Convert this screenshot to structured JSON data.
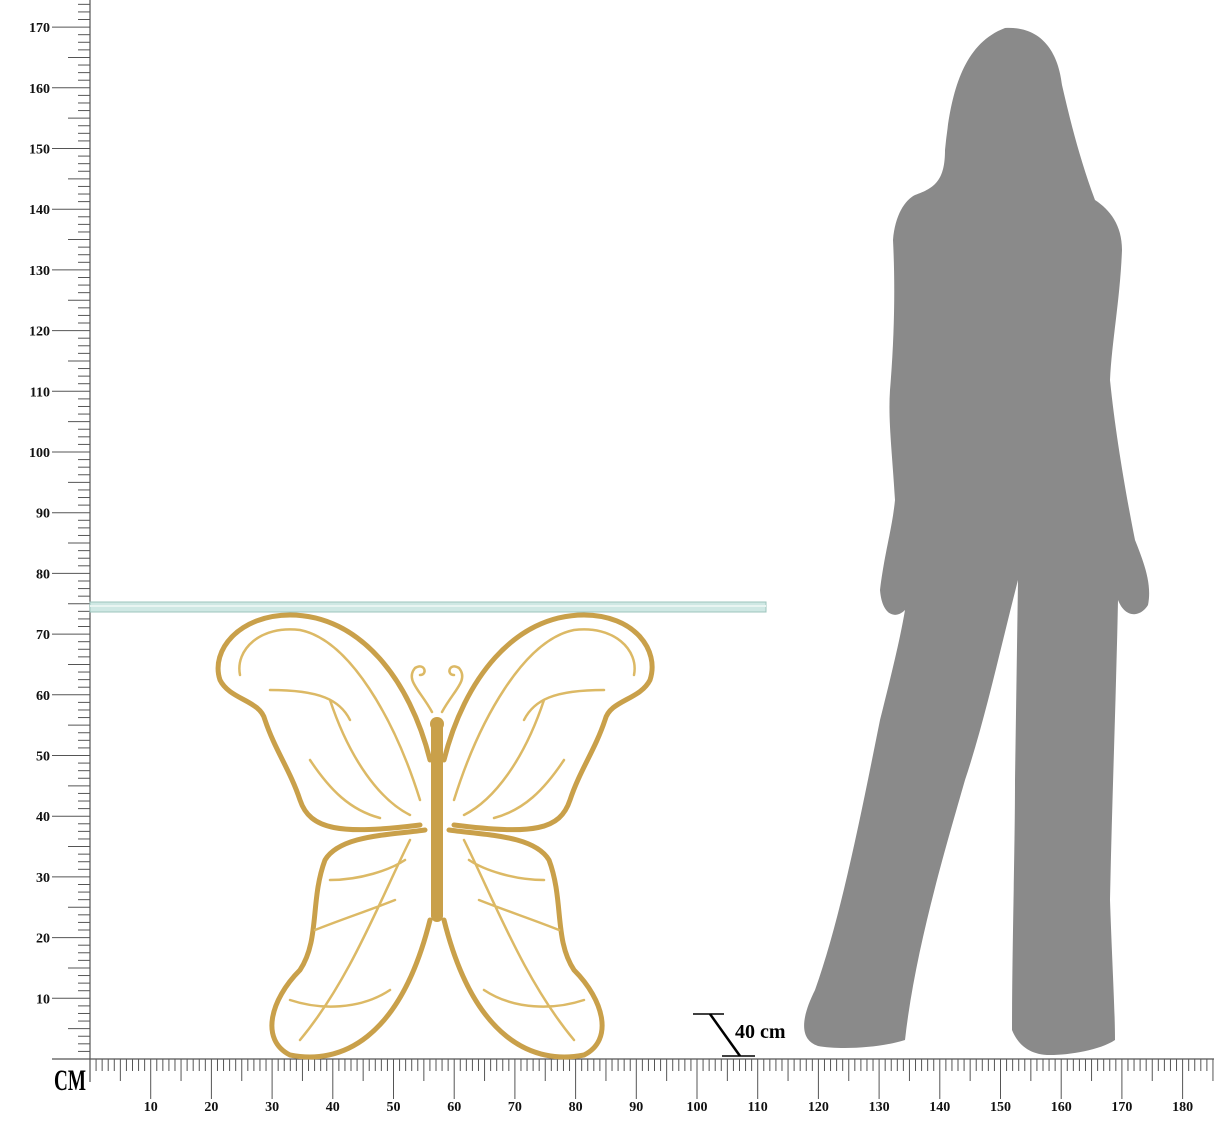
{
  "unit_label": "CM",
  "dimension_label": "40 cm",
  "x_axis": {
    "min": 0,
    "max": 185,
    "tick_labels": [
      "10",
      "20",
      "30",
      "40",
      "50",
      "60",
      "70",
      "80",
      "90",
      "100",
      "110",
      "120",
      "130",
      "140",
      "150",
      "160",
      "170",
      "180"
    ]
  },
  "y_axis": {
    "min": 0,
    "max": 175,
    "tick_labels": [
      "10",
      "20",
      "30",
      "40",
      "50",
      "60",
      "70",
      "80",
      "90",
      "100",
      "110",
      "120",
      "130",
      "140",
      "150",
      "160",
      "170"
    ]
  },
  "product": {
    "name": "butterfly console table",
    "height_cm": 75,
    "width_cm": 111,
    "depth_cm": 40,
    "frame_color": "#c9a04a",
    "top_color": "#cfe8e4"
  },
  "silhouette": {
    "height_cm": 171,
    "color": "#8a8a8a"
  }
}
